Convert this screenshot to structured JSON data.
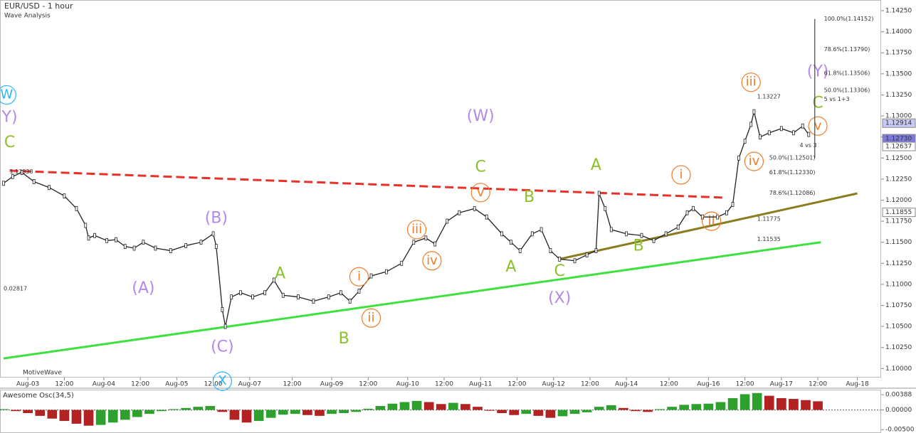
{
  "chart_data": [
    {
      "type": "line",
      "title": "EUR/USD - 1 hour",
      "subtitle": "Wave Analysis",
      "footer": "MotiveWave",
      "color": "#222222",
      "x": [
        0,
        3,
        6,
        10,
        15,
        20,
        24,
        27,
        28,
        30,
        34,
        37,
        40,
        43,
        46,
        50,
        55,
        60,
        65,
        69,
        70,
        72,
        73,
        75,
        78,
        82,
        86,
        89,
        92,
        97,
        102,
        107,
        111,
        114,
        117,
        121,
        126,
        131,
        135,
        139,
        142,
        146,
        150,
        155,
        159,
        164,
        167,
        170,
        174,
        177,
        180,
        183,
        188,
        192,
        195,
        196,
        198,
        200,
        205,
        210,
        214,
        218,
        222,
        225,
        227,
        230,
        235,
        238,
        240,
        242,
        244,
        246,
        247,
        249,
        252,
        256,
        260,
        263,
        265
      ],
      "series": [
        {
          "name": "EUR/USD",
          "color": "#222222",
          "values": [
            1.122,
            1.1228,
            1.1233,
            1.1222,
            1.1215,
            1.1205,
            1.119,
            1.117,
            1.1155,
            1.1158,
            1.1152,
            1.1153,
            1.1145,
            1.1143,
            1.115,
            1.1143,
            1.114,
            1.1146,
            1.115,
            1.116,
            1.1145,
            1.107,
            1.105,
            1.1085,
            1.109,
            1.1085,
            1.109,
            1.1105,
            1.1087,
            1.1085,
            1.108,
            1.1085,
            1.109,
            1.108,
            1.1092,
            1.111,
            1.1115,
            1.1125,
            1.115,
            1.1155,
            1.1148,
            1.1175,
            1.1185,
            1.119,
            1.118,
            1.116,
            1.115,
            1.114,
            1.116,
            1.1165,
            1.114,
            1.113,
            1.1128,
            1.1135,
            1.114,
            1.1208,
            1.119,
            1.1165,
            1.116,
            1.1158,
            1.1152,
            1.116,
            1.1168,
            1.1185,
            1.119,
            1.118,
            1.118,
            1.1185,
            1.1195,
            1.125,
            1.127,
            1.129,
            1.1305,
            1.1275,
            1.128,
            1.1285,
            1.128,
            1.1288,
            1.1278
          ]
        }
      ],
      "xlim": [
        0,
        290
      ],
      "xticks": [
        {
          "value": 8,
          "label": "Aug-03"
        },
        {
          "value": 20,
          "label": "12:00"
        },
        {
          "value": 33,
          "label": "Aug-04"
        },
        {
          "value": 45,
          "label": "12:00"
        },
        {
          "value": 57,
          "label": "Aug-05"
        },
        {
          "value": 69,
          "label": "12:00"
        },
        {
          "value": 81,
          "label": "Aug-07"
        },
        {
          "value": 95,
          "label": "12:00"
        },
        {
          "value": 108,
          "label": "Aug-09"
        },
        {
          "value": 120,
          "label": "12:00"
        },
        {
          "value": 133,
          "label": "Aug-10"
        },
        {
          "value": 145,
          "label": "12:00"
        },
        {
          "value": 157,
          "label": "Aug-11"
        },
        {
          "value": 169,
          "label": "12:00"
        },
        {
          "value": 181,
          "label": "Aug-12"
        },
        {
          "value": 193,
          "label": "12:00"
        },
        {
          "value": 205,
          "label": "Aug-14"
        },
        {
          "value": 219,
          "label": "12:00"
        },
        {
          "value": 232,
          "label": "Aug-16"
        },
        {
          "value": 244,
          "label": "12:00"
        },
        {
          "value": 256,
          "label": "Aug-17"
        },
        {
          "value": 268,
          "label": "12:00"
        },
        {
          "value": 281,
          "label": "Aug-18"
        }
      ],
      "ylim": [
        1.0991,
        1.1436
      ],
      "yticks": [
        {
          "value": 1.1,
          "label": "1.10000"
        },
        {
          "value": 1.1025,
          "label": "1.10250"
        },
        {
          "value": 1.105,
          "label": "1.10500"
        },
        {
          "value": 1.1075,
          "label": "1.10750"
        },
        {
          "value": 1.11,
          "label": "1.11000"
        },
        {
          "value": 1.1125,
          "label": "1.11250"
        },
        {
          "value": 1.115,
          "label": "1.11500"
        },
        {
          "value": 1.1175,
          "label": "1.11750"
        },
        {
          "value": 1.12,
          "label": "1.12000"
        },
        {
          "value": 1.1225,
          "label": "1.12250"
        },
        {
          "value": 1.125,
          "label": "1.12500"
        },
        {
          "value": 1.1275,
          "label": "1.12750"
        },
        {
          "value": 1.13,
          "label": "1.13000"
        },
        {
          "value": 1.1325,
          "label": "1.13250"
        },
        {
          "value": 1.135,
          "label": "1.13500"
        },
        {
          "value": 1.1375,
          "label": "1.13750"
        },
        {
          "value": 1.14,
          "label": "1.14000"
        },
        {
          "value": 1.1425,
          "label": "1.14250"
        }
      ],
      "price_markers": [
        {
          "value": 1.12914,
          "label": "1.12914",
          "color": "#c9c9f5"
        },
        {
          "value": 1.1273,
          "label": "1.12730",
          "color": "#7b7bd9"
        },
        {
          "value": 1.12637,
          "label": "1.12637",
          "color": "#ffffff"
        },
        {
          "value": 1.11855,
          "label": "1.11855",
          "color": "#ffffff"
        }
      ],
      "trendlines": [
        {
          "color": "#e8312a",
          "dashed": true,
          "width": 3,
          "points": [
            [
              2,
              1.1235
            ],
            [
              237,
              1.1203
            ]
          ]
        },
        {
          "color": "#3ee23e",
          "dashed": false,
          "width": 3,
          "points": [
            [
              0,
              1.1012
            ],
            [
              269,
              1.115
            ]
          ]
        },
        {
          "color": "#8b7d1e",
          "dashed": false,
          "width": 3,
          "points": [
            [
              183,
              1.113
            ],
            [
              281,
              1.1208
            ]
          ]
        }
      ],
      "annotations": [
        {
          "text": "W",
          "x": 1,
          "y": 1.1325,
          "color": "#29b6f6",
          "circled": true
        },
        {
          "text": "(Y)",
          "x": 1,
          "y": 1.1298,
          "color": "#b388e8",
          "circled": false
        },
        {
          "text": "C",
          "x": 2,
          "y": 1.1268,
          "color": "#8bc02a",
          "circled": false
        },
        {
          "text": "(W)",
          "x": 157,
          "y": 1.1299,
          "color": "#b388e8",
          "circled": false
        },
        {
          "text": "C",
          "x": 157,
          "y": 1.1239,
          "color": "#8bc02a",
          "circled": false
        },
        {
          "text": "v",
          "x": 157,
          "y": 1.1209,
          "color": "#f07d2a",
          "circled": true
        },
        {
          "text": "(B)",
          "x": 70,
          "y": 1.1178,
          "color": "#b388e8",
          "circled": false
        },
        {
          "text": "(A)",
          "x": 46,
          "y": 1.1095,
          "color": "#b388e8",
          "circled": false
        },
        {
          "text": "(C)",
          "x": 72,
          "y": 1.1025,
          "color": "#b388e8",
          "circled": false
        },
        {
          "text": "X",
          "x": 72,
          "y": 1.0985,
          "color": "#29b6f6",
          "circled": true
        },
        {
          "text": "A",
          "x": 91,
          "y": 1.1112,
          "color": "#8bc02a",
          "circled": false
        },
        {
          "text": "B",
          "x": 112,
          "y": 1.1035,
          "color": "#8bc02a",
          "circled": false
        },
        {
          "text": "i",
          "x": 117,
          "y": 1.1109,
          "color": "#f07d2a",
          "circled": true
        },
        {
          "text": "ii",
          "x": 121,
          "y": 1.106,
          "color": "#f07d2a",
          "circled": true
        },
        {
          "text": "iii",
          "x": 136,
          "y": 1.1165,
          "color": "#f07d2a",
          "circled": true
        },
        {
          "text": "iv",
          "x": 141,
          "y": 1.1128,
          "color": "#f07d2a",
          "circled": true
        },
        {
          "text": "B",
          "x": 173,
          "y": 1.1203,
          "color": "#8bc02a",
          "circled": false
        },
        {
          "text": "A",
          "x": 167,
          "y": 1.112,
          "color": "#8bc02a",
          "circled": false
        },
        {
          "text": "C",
          "x": 183,
          "y": 1.1115,
          "color": "#8bc02a",
          "circled": false
        },
        {
          "text": "(X)",
          "x": 183,
          "y": 1.1083,
          "color": "#b388e8",
          "circled": false
        },
        {
          "text": "A",
          "x": 195,
          "y": 1.1241,
          "color": "#8bc02a",
          "circled": false
        },
        {
          "text": "B",
          "x": 209,
          "y": 1.1145,
          "color": "#8bc02a",
          "circled": false
        },
        {
          "text": "i",
          "x": 223,
          "y": 1.123,
          "color": "#f07d2a",
          "circled": true
        },
        {
          "text": "ii",
          "x": 233,
          "y": 1.1175,
          "color": "#f07d2a",
          "circled": true
        },
        {
          "text": "iii",
          "x": 246,
          "y": 1.134,
          "color": "#f07d2a",
          "circled": true
        },
        {
          "text": "iv",
          "x": 247,
          "y": 1.1246,
          "color": "#f07d2a",
          "circled": true
        },
        {
          "text": "v",
          "x": 268,
          "y": 1.1288,
          "color": "#f07d2a",
          "circled": true
        },
        {
          "text": "C",
          "x": 268,
          "y": 1.1315,
          "color": "#8bc02a",
          "circled": false
        },
        {
          "text": "(Y)",
          "x": 268,
          "y": 1.1352,
          "color": "#b388e8",
          "circled": false
        }
      ],
      "fib_labels": [
        {
          "text": "100.0%(1.14152)",
          "x": 270,
          "y": 1.14152
        },
        {
          "text": "78.6%(1.13790)",
          "x": 270,
          "y": 1.1379
        },
        {
          "text": "61.8%(1.13506)",
          "x": 270,
          "y": 1.13506
        },
        {
          "text": "50.0%(1.13306)",
          "x": 270,
          "y": 1.13306
        },
        {
          "text": "5 vs 1+3",
          "x": 270,
          "y": 1.132
        },
        {
          "text": "4 vs 3",
          "x": 262,
          "y": 1.1265
        },
        {
          "text": "50.0%(1.12501)",
          "x": 252,
          "y": 1.12501
        },
        {
          "text": "61.8%(1.12330)",
          "x": 252,
          "y": 1.1233
        },
        {
          "text": "78.6%(1.12086)",
          "x": 252,
          "y": 1.12086
        },
        {
          "text": "1.13227",
          "x": 248,
          "y": 1.13227
        },
        {
          "text": "1.11775",
          "x": 248,
          "y": 1.11775
        },
        {
          "text": "1.11535",
          "x": 248,
          "y": 1.11535
        },
        {
          "text": "1.12338",
          "x": 2,
          "y": 1.12338
        },
        {
          "text": "0.02817",
          "x": 0,
          "y": 1.1095
        }
      ]
    },
    {
      "type": "bar",
      "title": "Awesome Osc(34,5)",
      "up_color": "#2ea02e",
      "down_color": "#b22222",
      "x": [
        0,
        4,
        8,
        12,
        16,
        20,
        24,
        28,
        32,
        36,
        40,
        44,
        48,
        52,
        56,
        60,
        64,
        68,
        72,
        76,
        80,
        84,
        88,
        92,
        96,
        100,
        104,
        108,
        112,
        116,
        120,
        124,
        128,
        132,
        136,
        140,
        144,
        148,
        152,
        156,
        160,
        164,
        168,
        172,
        176,
        180,
        184,
        188,
        192,
        196,
        200,
        204,
        208,
        212,
        216,
        220,
        224,
        228,
        232,
        236,
        240,
        244,
        248,
        252,
        256,
        260,
        264,
        268
      ],
      "values": [
        0.0002,
        -0.0003,
        -0.0008,
        -0.0015,
        -0.0022,
        -0.0028,
        -0.0035,
        -0.004,
        -0.0038,
        -0.0032,
        -0.0025,
        -0.0018,
        -0.001,
        -0.0003,
        0.0002,
        0.0005,
        0.0008,
        0.001,
        -0.0005,
        -0.0025,
        -0.0032,
        -0.0028,
        -0.002,
        -0.0012,
        -0.001,
        -0.0013,
        -0.0015,
        -0.001,
        -0.0008,
        -0.0005,
        0.0003,
        0.001,
        0.0016,
        0.002,
        0.0023,
        0.002,
        0.0015,
        0.0018,
        0.0015,
        0.0008,
        -0.0002,
        -0.0008,
        -0.0013,
        -0.001,
        -0.0015,
        -0.002,
        -0.0016,
        -0.001,
        -0.0006,
        0.0008,
        0.0012,
        0.0005,
        -0.0003,
        -0.0005,
        0.0002,
        0.0008,
        0.0013,
        0.0015,
        0.0016,
        0.002,
        0.003,
        0.004,
        0.0043,
        0.0036,
        0.003,
        0.0028,
        0.0025,
        0.0022
      ],
      "ylim": [
        -0.0055,
        0.0048
      ],
      "yticks": [
        0.00388,
        {
          "value": 0,
          "label": "0.00000"
        },
        {
          "value": -0.005,
          "label": "-0.00500"
        }
      ]
    }
  ]
}
